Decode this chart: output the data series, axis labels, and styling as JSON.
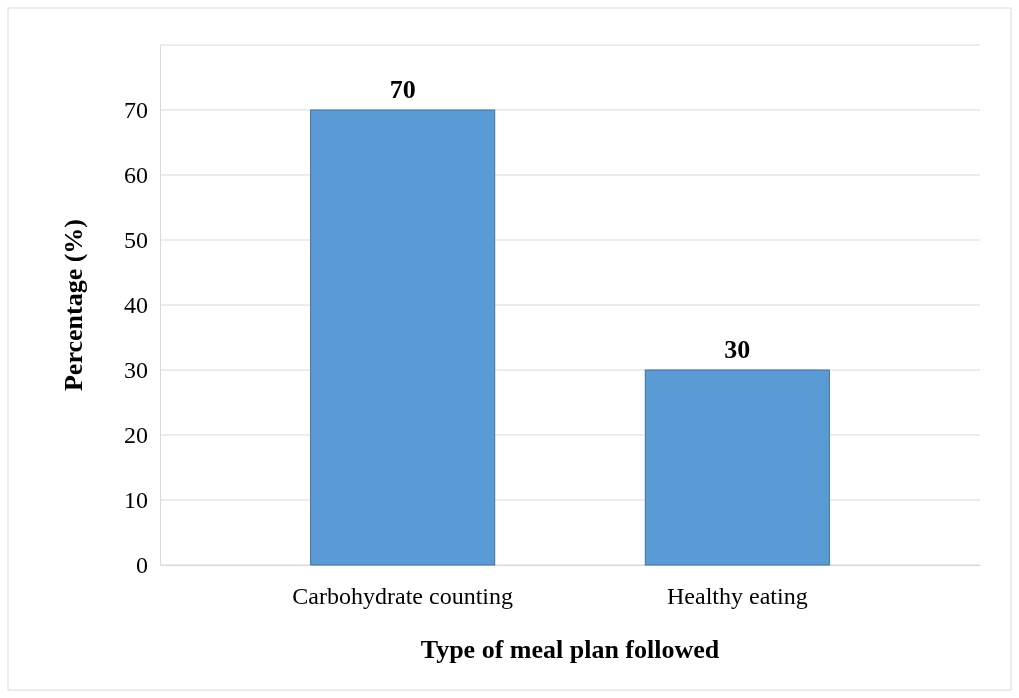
{
  "chart_data": {
    "type": "bar",
    "xlabel": "Type of meal plan followed",
    "ylabel": "Percentage (%)",
    "categories": [
      "Carbohydrate counting",
      "Healthy eating"
    ],
    "values": [
      70,
      30
    ],
    "color": "#5b9bd5",
    "data_labels": true,
    "grid": "y",
    "ylim": [
      0,
      80
    ],
    "yticks": [
      0,
      10,
      20,
      30,
      40,
      50,
      60,
      70,
      {
        "value": 80,
        "label": null
      }
    ]
  }
}
